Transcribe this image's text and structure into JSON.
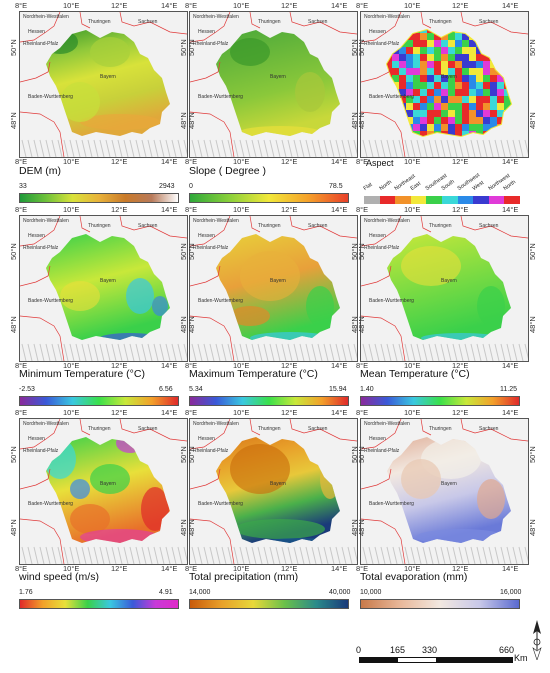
{
  "axes": {
    "x_ticks": [
      "8°E",
      "10°E",
      "12°E",
      "14°E"
    ],
    "y_ticks": [
      "50°N",
      "48°N"
    ]
  },
  "map_labels": {
    "nordrhein": "Nordrhein-Westfalen",
    "thuringen": "Thuringen",
    "sachsen": "Sachsen",
    "hessen": "Hessen",
    "rheinland": "Rheinland-Pfalz",
    "bayern": "Bayern",
    "baden": "Baden-Wurttemberg"
  },
  "legends": [
    {
      "title": "DEM (m)",
      "min": "33",
      "max": "2943",
      "gradient": "linear-gradient(90deg,#1f9a3a,#6fc23a,#d9e23a,#e8b23a,#c97a2a,#b87a5a,#fff)"
    },
    {
      "title": "Slope ( Degree )",
      "min": "0",
      "max": "78.5",
      "gradient": "linear-gradient(90deg,#2fa83a,#8ad03a,#f2e83a,#f5a02a,#e8402a)"
    },
    {
      "title": "Aspect",
      "min": "",
      "max": "",
      "gradient": ""
    },
    {
      "title": "Minimum Temperature (°C)",
      "min": "-2.53",
      "max": "6.56",
      "gradient": "linear-gradient(90deg,#8a2a9a,#3a5ad8,#3ac8e0,#3ae04a,#c8e83a,#f2a02a,#e02a2a)"
    },
    {
      "title": "Maximum Temperature (°C)",
      "min": "5.34",
      "max": "15.94",
      "gradient": "linear-gradient(90deg,#8a2a9a,#3a5ad8,#3ac8e0,#3ae04a,#c8e83a,#f2a02a,#e02a2a)"
    },
    {
      "title": "Mean Temperature (°C)",
      "min": "1.40",
      "max": "11.25",
      "gradient": "linear-gradient(90deg,#8a2a9a,#3a5ad8,#3ac8e0,#3ae04a,#c8e83a,#f2a02a,#e02a2a)"
    },
    {
      "title": "wind speed (m/s)",
      "min": "1.76",
      "max": "4.91",
      "gradient": "linear-gradient(90deg,#e02a2a,#f2a02a,#e8e03a,#3ad04a,#3ac8e0,#3a5ad8,#c83ad8,#e02ac8)"
    },
    {
      "title": "Total precipitation (mm)",
      "min": "14,000",
      "max": "40,000",
      "gradient": "linear-gradient(90deg,#c85a0a,#e8a02a,#e8d83a,#6ac04a,#2a8a8a,#1a3a7a)"
    },
    {
      "title": "Total evaporation (mm)",
      "min": "10,000",
      "max": "16,000",
      "gradient": "linear-gradient(90deg,#c87a4a,#e8b89a,#f2e8e0,#c8c8e8,#5a6ad0)"
    }
  ],
  "aspect_classes": [
    {
      "label": "Flat",
      "color": "#b0b0b0"
    },
    {
      "label": "North",
      "color": "#e82a2a"
    },
    {
      "label": "Northeast",
      "color": "#f2922a"
    },
    {
      "label": "East",
      "color": "#f2e83a"
    },
    {
      "label": "Southeast",
      "color": "#3ad04a"
    },
    {
      "label": "South",
      "color": "#3ad8d8"
    },
    {
      "label": "Southwest",
      "color": "#2a8ae8"
    },
    {
      "label": "West",
      "color": "#3a3ad0"
    },
    {
      "label": "Northwest",
      "color": "#e03ad8"
    },
    {
      "label": "North",
      "color": "#e82a2a"
    }
  ],
  "scale_bar": {
    "labels": [
      "0",
      "165",
      "330",
      "660"
    ],
    "unit": "Km"
  }
}
